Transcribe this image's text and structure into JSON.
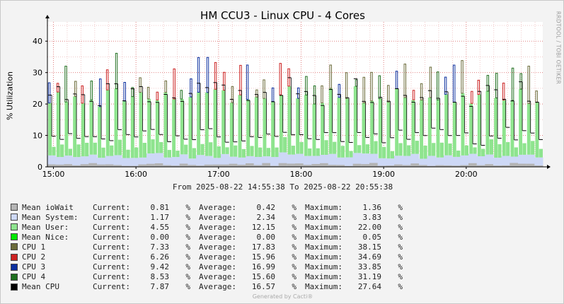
{
  "chart_data": {
    "type": "area",
    "title": "HM CCU3 - Linux CPU - 4 Cores",
    "ylabel": "% Utilization",
    "ylim": [
      0,
      45
    ],
    "yticks": [
      0,
      10,
      20,
      30,
      40
    ],
    "xticks": [
      "15:00",
      "16:00",
      "17:00",
      "18:00",
      "19:00",
      "20:00"
    ],
    "x_start": "2025-08-22 14:55:38",
    "x_end": "2025-08-22 20:55:38",
    "grid": true,
    "range_text": "From 2025-08-22 14:55:38 To 2025-08-22 20:55:38",
    "series": [
      {
        "name": "Mean ioWait",
        "color": "#b4b4b4",
        "current": "0.81",
        "average": "0.42",
        "maximum": "1.36"
      },
      {
        "name": "Mean System:",
        "color": "#cdd8f6",
        "current": "1.17",
        "average": "2.34",
        "maximum": "3.83"
      },
      {
        "name": "Mean User:",
        "color": "#8ee48e",
        "current": "4.55",
        "average": "12.15",
        "maximum": "22.00"
      },
      {
        "name": "Mean Nice:",
        "color": "#00e600",
        "current": "0.00",
        "average": "0.00",
        "maximum": "0.05"
      },
      {
        "name": "CPU 1",
        "color": "#6b6b3a",
        "current": "7.33",
        "average": "17.83",
        "maximum": "38.15"
      },
      {
        "name": "CPU 2",
        "color": "#cc2222",
        "current": "6.26",
        "average": "15.96",
        "maximum": "34.69"
      },
      {
        "name": "CPU 3",
        "color": "#0b2f9e",
        "current": "9.42",
        "average": "16.99",
        "maximum": "33.85"
      },
      {
        "name": "CPU 4",
        "color": "#1e6e1e",
        "current": "8.53",
        "average": "15.60",
        "maximum": "31.19"
      },
      {
        "name": "Mean CPU",
        "color": "#000000",
        "current": "7.87",
        "average": "16.57",
        "maximum": "27.64"
      }
    ],
    "column_labels": {
      "current": "Current:",
      "average": "Average:",
      "maximum": "Maximum:",
      "unit": "%"
    }
  },
  "watermark": "RRDTOOL / TOBI OETIKER",
  "footer": "Generated by Cacti®"
}
